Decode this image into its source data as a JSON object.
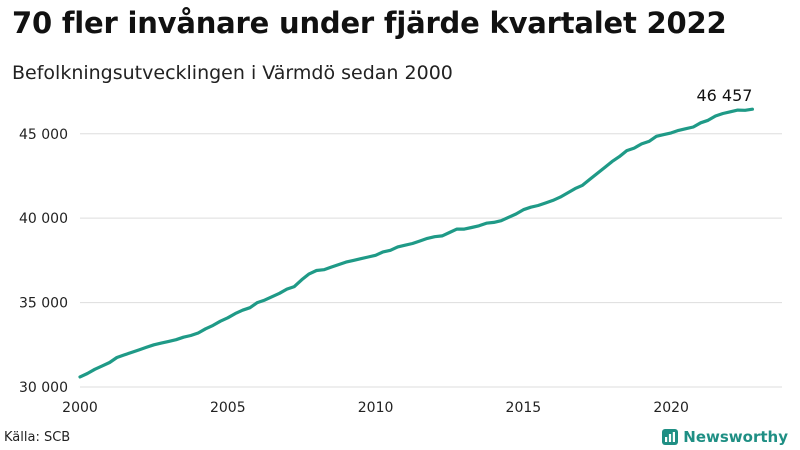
{
  "header": {
    "title": "70 fler invånare under fjärde kvartalet 2022",
    "subtitle": "Befolkningsutvecklingen i Värmdö sedan 2000"
  },
  "footer": {
    "source": "Källa: SCB",
    "brand": "Newsworthy",
    "brand_icon": "bar-chart-logo-icon"
  },
  "colors": {
    "line": "#1f9a87",
    "grid": "#dddddd",
    "brand": "#1f8f84"
  },
  "chart_data": {
    "type": "line",
    "title": "70 fler invånare under fjärde kvartalet 2022",
    "subtitle": "Befolkningsutvecklingen i Värmdö sedan 2000",
    "xlabel": "",
    "ylabel": "",
    "xlim": [
      2000,
      2023.75
    ],
    "ylim": [
      30000,
      47000
    ],
    "grid": "horizontal",
    "x_ticks": [
      2000,
      2005,
      2010,
      2015,
      2020
    ],
    "x_tick_labels": [
      "2000",
      "2005",
      "2010",
      "2015",
      "2020"
    ],
    "y_ticks": [
      30000,
      35000,
      40000,
      45000
    ],
    "y_tick_labels": [
      "30 000",
      "35 000",
      "40 000",
      "45 000"
    ],
    "end_label": "46 457",
    "series": [
      {
        "x": [
          2000.0,
          2000.25,
          2000.5,
          2000.75,
          2001.0,
          2001.25,
          2001.5,
          2001.75,
          2002.0,
          2002.25,
          2002.5,
          2002.75,
          2003.0,
          2003.25,
          2003.5,
          2003.75,
          2004.0,
          2004.25,
          2004.5,
          2004.75,
          2005.0,
          2005.25,
          2005.5,
          2005.75,
          2006.0,
          2006.25,
          2006.5,
          2006.75,
          2007.0,
          2007.25,
          2007.5,
          2007.75,
          2008.0,
          2008.25,
          2008.5,
          2008.75,
          2009.0,
          2009.25,
          2009.5,
          2009.75,
          2010.0,
          2010.25,
          2010.5,
          2010.75,
          2011.0,
          2011.25,
          2011.5,
          2011.75,
          2012.0,
          2012.25,
          2012.5,
          2012.75,
          2013.0,
          2013.25,
          2013.5,
          2013.75,
          2014.0,
          2014.25,
          2014.5,
          2014.75,
          2015.0,
          2015.25,
          2015.5,
          2015.75,
          2016.0,
          2016.25,
          2016.5,
          2016.75,
          2017.0,
          2017.25,
          2017.5,
          2017.75,
          2018.0,
          2018.25,
          2018.5,
          2018.75,
          2019.0,
          2019.25,
          2019.5,
          2019.75,
          2020.0,
          2020.25,
          2020.5,
          2020.75,
          2021.0,
          2021.25,
          2021.5,
          2021.75,
          2022.0,
          2022.25,
          2022.5,
          2022.75
        ],
        "values": [
          30600,
          30800,
          31050,
          31250,
          31450,
          31750,
          31900,
          32050,
          32200,
          32350,
          32500,
          32600,
          32700,
          32800,
          32950,
          33050,
          33200,
          33450,
          33650,
          33900,
          34100,
          34350,
          34550,
          34700,
          35000,
          35150,
          35350,
          35550,
          35800,
          35950,
          36350,
          36700,
          36900,
          36950,
          37100,
          37250,
          37400,
          37500,
          37600,
          37700,
          37800,
          38000,
          38100,
          38300,
          38400,
          38500,
          38650,
          38800,
          38900,
          38950,
          39150,
          39350,
          39350,
          39450,
          39550,
          39700,
          39750,
          39850,
          40050,
          40250,
          40500,
          40650,
          40750,
          40900,
          41050,
          41250,
          41500,
          41750,
          41950,
          42300,
          42650,
          43000,
          43350,
          43650,
          44000,
          44150,
          44400,
          44550,
          44850,
          44950,
          45050,
          45200,
          45300,
          45400,
          45650,
          45800,
          46050,
          46200,
          46300,
          46400,
          46387,
          46457
        ]
      }
    ]
  }
}
